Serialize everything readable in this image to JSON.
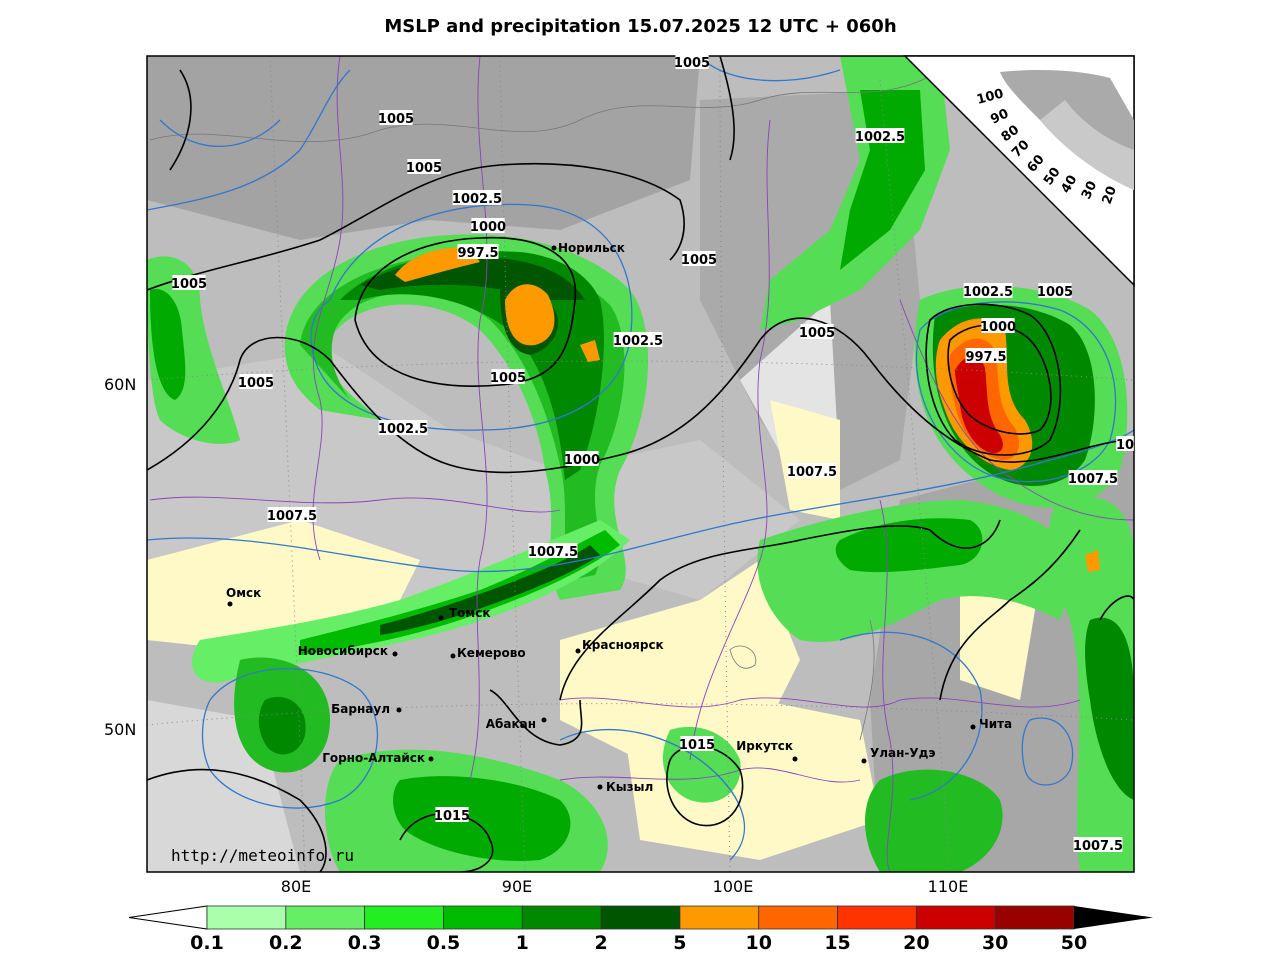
{
  "title": "MSLP and precipitation 15.07.2025 12 UTC + 060h",
  "url": "http://meteoinfo.ru",
  "lat_labels": [
    "60N",
    "50N"
  ],
  "lon_labels": [
    "80E",
    "90E",
    "100E",
    "110E"
  ],
  "isobar_labels": [
    "1005",
    "1005",
    "1005",
    "1002.5",
    "1000",
    "997.5",
    "1005",
    "1005",
    "1002.5",
    "1005",
    "1000",
    "1002.5",
    "1005",
    "1002.5",
    "1005",
    "1005",
    "1002.5",
    "1000",
    "997.5",
    "1007.5",
    "1007.5",
    "1007.5",
    "1007.5",
    "10",
    "1015",
    "1015",
    "1007.5"
  ],
  "cities": [
    "Норильск",
    "Омск",
    "Томск",
    "Новосибирск",
    "Кемерово",
    "Красноярск",
    "Барнаул",
    "Абакан",
    "Горно-Алтайск",
    "Иркутск",
    "Улан-Удэ",
    "Чита",
    "Кызыл"
  ],
  "cloud_scale": [
    "100",
    "90",
    "80",
    "70",
    "60",
    "50",
    "40",
    "30",
    "20"
  ],
  "colorbar": {
    "labels": [
      "0.1",
      "0.2",
      "0.3",
      "0.5",
      "1",
      "2",
      "5",
      "10",
      "15",
      "20",
      "30",
      "50"
    ],
    "colors": [
      "#aaffaa",
      "#66ee66",
      "#22ee22",
      "#00bb00",
      "#008800",
      "#005500",
      "#ff9900",
      "#ff6600",
      "#ff3300",
      "#cc0000",
      "#990000"
    ]
  }
}
